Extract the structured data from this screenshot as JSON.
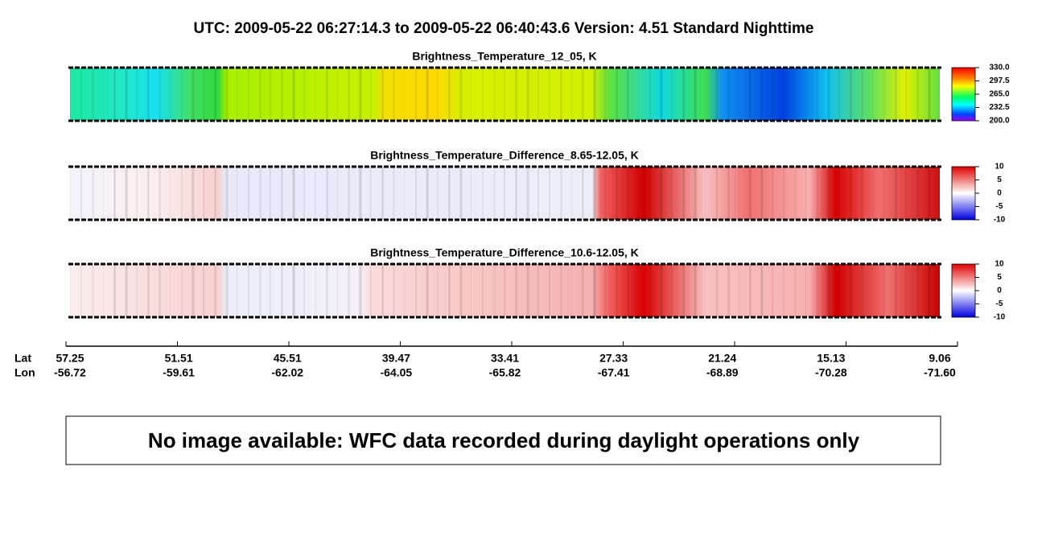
{
  "header": {
    "title": "UTC:  2009-05-22   06:27:14.3  to  2009-05-22   06:40:43.6    Version: 4.51  Standard Nighttime"
  },
  "panels": [
    {
      "title": "Brightness_Temperature_12_05, K",
      "colorbar_ticks": [
        {
          "value": 330,
          "label": "330.0"
        },
        {
          "value": 297.5,
          "label": "297.5"
        },
        {
          "value": 265,
          "label": "265.0"
        },
        {
          "value": 232.5,
          "label": "232.5"
        },
        {
          "value": 200,
          "label": "200.0"
        }
      ]
    },
    {
      "title": "Brightness_Temperature_Difference_8.65-12.05, K",
      "colorbar_ticks": [
        10,
        5,
        0,
        -5,
        -10
      ]
    },
    {
      "title": "Brightness_Temperature_Difference_10.6-12.05, K",
      "colorbar_ticks": [
        10,
        5,
        0,
        -5,
        -10
      ]
    }
  ],
  "axis": {
    "lat_label": "Lat",
    "lon_label": "Lon",
    "lat": [
      57.25,
      51.51,
      45.51,
      39.47,
      33.41,
      27.33,
      21.24,
      15.13,
      9.06
    ],
    "lon": [
      -56.72,
      -59.61,
      -62.02,
      -64.05,
      -65.82,
      -67.41,
      -68.89,
      -70.28,
      {
        "value": -71.6,
        "label": "-71.60"
      }
    ]
  },
  "message": "No image available: WFC data recorded during daylight operations only"
}
